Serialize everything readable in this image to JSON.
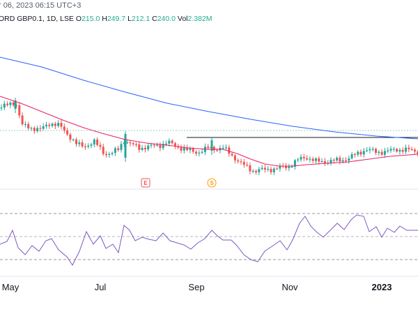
{
  "header": {
    "datetime": "r 06, 2023 06:15 UTC+3",
    "symbol": "ORD GBP0.1, 1D, LSE",
    "ohlc": [
      {
        "key": "O",
        "value": "215.0"
      },
      {
        "key": "H",
        "value": "249.7"
      },
      {
        "key": "L",
        "value": "212.1"
      },
      {
        "key": "C",
        "value": "240.0"
      },
      {
        "key": "Vol",
        "value": "2.382M"
      }
    ]
  },
  "colors": {
    "up": "#26a69a",
    "down": "#ef5350",
    "ma_slow": "#2962ff",
    "ma_fast": "#e91e63",
    "rsi": "#7e57c2",
    "earnings_marker": "#ef5350",
    "split_marker": "#ff9800"
  },
  "markers": {
    "earnings_label": "E",
    "split_label": "S"
  },
  "x_axis": {
    "labels": [
      {
        "text": "May",
        "bold": false
      },
      {
        "text": "Jul",
        "bold": false
      },
      {
        "text": "Sep",
        "bold": false
      },
      {
        "text": "Nov",
        "bold": false
      },
      {
        "text": "2023",
        "bold": true
      }
    ]
  },
  "chart_data": {
    "type": "candlestick",
    "panes": [
      "price",
      "rsi"
    ],
    "x": [
      "May",
      "Jul",
      "Sep",
      "Nov",
      "2023"
    ],
    "series": [
      {
        "name": "",
        "kind": "candles"
      },
      {
        "name": "",
        "kind": "moving-average-long",
        "color": "#2962ff"
      },
      {
        "name": "",
        "kind": "moving-average-short",
        "color": "#e91e63"
      },
      {
        "name": "",
        "kind": "oscillator",
        "color": "#7e57c2"
      }
    ],
    "rsi_bands": "dashed upper and lower bands",
    "title": "",
    "xlabel": "",
    "ylabel": ""
  }
}
